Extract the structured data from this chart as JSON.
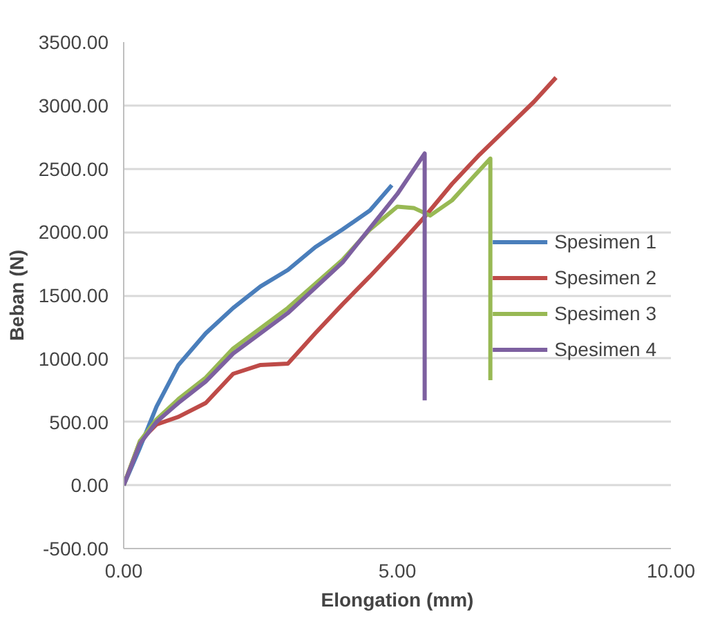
{
  "chart_data": {
    "type": "line",
    "xlabel": "Elongation (mm)",
    "ylabel": "Beban (N)",
    "xlim": [
      0,
      10
    ],
    "xticks": [
      {
        "value": 0,
        "label": "0.00"
      },
      {
        "value": 5,
        "label": "5.00"
      },
      {
        "value": 10,
        "label": "10.00"
      }
    ],
    "ylim": [
      -500,
      3500
    ],
    "yticks": [
      {
        "value": -500,
        "label": "-500.00"
      },
      {
        "value": 0,
        "label": "0.00"
      },
      {
        "value": 500,
        "label": "500.00"
      },
      {
        "value": 1000,
        "label": "1000.00"
      },
      {
        "value": 1500,
        "label": "1500.00"
      },
      {
        "value": 2000,
        "label": "2000.00"
      },
      {
        "value": 2500,
        "label": "2500.00"
      },
      {
        "value": 3000,
        "label": "3000.00"
      },
      {
        "value": 3500,
        "label": "3500.00"
      }
    ],
    "grid": "y",
    "legend": "right",
    "marker": "none",
    "line_style": "solid",
    "series": [
      {
        "name": "Spesimen 1",
        "color": "#4a7ebb",
        "x": [
          0,
          0.3,
          0.6,
          1,
          1.5,
          2,
          2.5,
          3,
          3.5,
          4,
          4.5,
          4.9
        ],
        "values": [
          0,
          300,
          620,
          950,
          1200,
          1400,
          1570,
          1700,
          1880,
          2020,
          2170,
          2370
        ]
      },
      {
        "name": "Spesimen 2",
        "color": "#be4b48",
        "x": [
          0,
          0.3,
          0.6,
          1,
          1.5,
          2,
          2.5,
          3,
          3.5,
          4,
          4.5,
          5,
          5.5,
          6,
          6.5,
          7,
          7.5,
          7.9
        ],
        "values": [
          0,
          350,
          480,
          540,
          650,
          880,
          950,
          960,
          1200,
          1430,
          1650,
          1880,
          2120,
          2380,
          2610,
          2820,
          3030,
          3220
        ]
      },
      {
        "name": "Spesimen 3",
        "color": "#98b954",
        "x": [
          0,
          0.3,
          0.6,
          1,
          1.5,
          2,
          3,
          4,
          4.5,
          5,
          5.3,
          5.6,
          6,
          6.4,
          6.7,
          6.7
        ],
        "values": [
          0,
          350,
          520,
          680,
          850,
          1080,
          1400,
          1780,
          2020,
          2200,
          2190,
          2130,
          2250,
          2440,
          2580,
          830
        ]
      },
      {
        "name": "Spesimen 4",
        "color": "#7d60a0",
        "x": [
          0,
          0.3,
          0.6,
          1,
          1.5,
          2,
          3,
          4,
          4.5,
          5,
          5.5,
          5.5
        ],
        "values": [
          0,
          330,
          500,
          650,
          820,
          1040,
          1360,
          1760,
          2030,
          2300,
          2620,
          670
        ]
      }
    ]
  }
}
